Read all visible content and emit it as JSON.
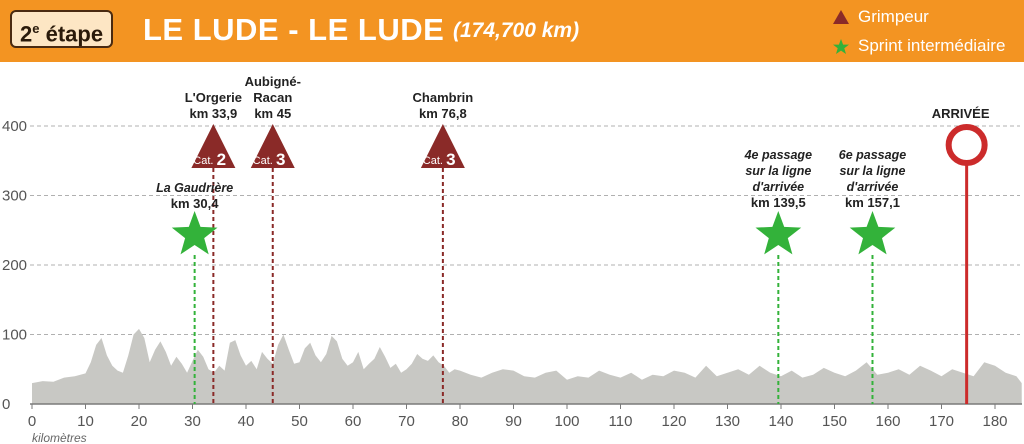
{
  "header": {
    "stage_number": "2",
    "stage_suffix": "e",
    "stage_word": "étape",
    "route": "LE LUDE - LE LUDE",
    "distance": "(174,700 km)",
    "header_color": "#f39422"
  },
  "legend": {
    "climb_label": "Grimpeur",
    "climb_icon": "triangle-icon",
    "sprint_label": "Sprint intermédiaire",
    "sprint_icon": "star-icon"
  },
  "colors": {
    "climb": "#8a2a28",
    "sprint": "#33b23a",
    "finish": "#cc2b2b",
    "profile": "#c8c8c4"
  },
  "chart_data": {
    "type": "area",
    "title": "",
    "xlabel": "kilomètres",
    "ylabel": "",
    "xlim": [
      0,
      185
    ],
    "ylim": [
      0,
      400
    ],
    "xticks": [
      0,
      10,
      20,
      30,
      40,
      50,
      60,
      70,
      80,
      90,
      100,
      110,
      120,
      130,
      140,
      150,
      160,
      170,
      180
    ],
    "yticks": [
      0,
      100,
      200,
      300,
      400
    ],
    "grid": "horizontal dashed",
    "profile": {
      "x": [
        0,
        2,
        4,
        6,
        8,
        10,
        11,
        12,
        13,
        14,
        15,
        16,
        17,
        18,
        19,
        20,
        21,
        22,
        23,
        24,
        25,
        26,
        27,
        28,
        29,
        30,
        31,
        32,
        33,
        34,
        35,
        36,
        37,
        38,
        39,
        40,
        41,
        42,
        43,
        44,
        45,
        46,
        47,
        48,
        49,
        50,
        51,
        52,
        53,
        54,
        55,
        56,
        57,
        58,
        59,
        60,
        61,
        62,
        63,
        64,
        65,
        66,
        67,
        68,
        69,
        70,
        71,
        72,
        73,
        74,
        75,
        76,
        77,
        78,
        79,
        80,
        82,
        84,
        86,
        88,
        90,
        92,
        94,
        96,
        98,
        100,
        102,
        104,
        106,
        108,
        110,
        112,
        114,
        116,
        118,
        120,
        122,
        124,
        126,
        128,
        130,
        132,
        134,
        136,
        138,
        140,
        142,
        144,
        146,
        148,
        150,
        152,
        154,
        156,
        158,
        160,
        162,
        164,
        166,
        168,
        170,
        172,
        174,
        176,
        178,
        180,
        182,
        184,
        185
      ],
      "y": [
        30,
        33,
        32,
        38,
        40,
        44,
        60,
        85,
        95,
        70,
        55,
        48,
        45,
        70,
        100,
        108,
        95,
        60,
        78,
        90,
        75,
        55,
        68,
        58,
        45,
        62,
        78,
        68,
        50,
        45,
        55,
        48,
        88,
        92,
        70,
        55,
        62,
        50,
        75,
        65,
        58,
        85,
        100,
        78,
        58,
        60,
        80,
        88,
        70,
        60,
        72,
        98,
        90,
        65,
        55,
        60,
        75,
        50,
        58,
        65,
        82,
        68,
        52,
        58,
        45,
        50,
        58,
        72,
        65,
        62,
        70,
        60,
        55,
        45,
        50,
        48,
        42,
        38,
        45,
        50,
        48,
        40,
        38,
        45,
        48,
        35,
        40,
        38,
        48,
        42,
        38,
        45,
        35,
        42,
        40,
        48,
        45,
        38,
        55,
        40,
        45,
        50,
        42,
        55,
        45,
        40,
        48,
        38,
        42,
        52,
        45,
        40,
        48,
        60,
        42,
        45,
        50,
        42,
        55,
        48,
        40,
        50,
        45,
        40,
        60,
        55,
        45,
        40,
        30
      ]
    },
    "climbs": [
      {
        "name": "L'Orgerie",
        "km": 33.9,
        "km_label": "km 33,9",
        "cat_text": "Cat.",
        "cat": "2"
      },
      {
        "name": "Aubigné-Racan",
        "name_lines": [
          "Aubigné-",
          "Racan"
        ],
        "km": 45,
        "km_label": "km 45",
        "cat_text": "Cat.",
        "cat": "3"
      },
      {
        "name": "Chambrin",
        "km": 76.8,
        "km_label": "km 76,8",
        "cat_text": "Cat.",
        "cat": "3"
      }
    ],
    "sprints": [
      {
        "name": "La Gaudrière",
        "km": 30.4,
        "km_label": "km 30,4"
      },
      {
        "name_lines": [
          "4e passage",
          "sur la ligne",
          "d'arrivée"
        ],
        "km": 139.5,
        "km_label": "km 139,5"
      },
      {
        "name_lines": [
          "6e passage",
          "sur la ligne",
          "d'arrivée"
        ],
        "km": 157.1,
        "km_label": "km 157,1"
      }
    ],
    "finish": {
      "label": "ARRIVÉE",
      "km": 174.7
    }
  }
}
